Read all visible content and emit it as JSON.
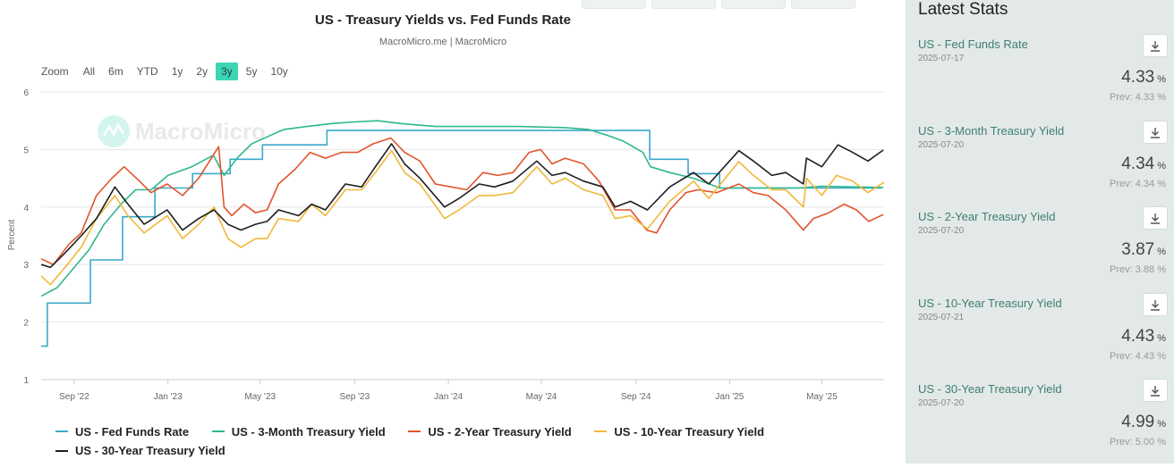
{
  "chart": {
    "title": "US - Treasury Yields vs. Fed Funds Rate",
    "subtitle": "MacroMicro.me | MacroMicro",
    "watermark": "MacroMicro",
    "zoom_label": "Zoom",
    "zoom_options": [
      "All",
      "6m",
      "YTD",
      "1y",
      "2y",
      "3y",
      "5y",
      "10y"
    ],
    "zoom_active": "3y"
  },
  "chart_data": {
    "type": "line",
    "title": "US - Treasury Yields vs. Fed Funds Rate",
    "subtitle": "MacroMicro.me | MacroMicro",
    "ylabel": "Percent",
    "ylim": [
      1,
      6
    ],
    "yticks": [
      1,
      2,
      3,
      4,
      5,
      6
    ],
    "xlim": [
      "2022-07-20",
      "2025-07-21"
    ],
    "xticks": [
      {
        "date": "2022-09-01",
        "label": "Sep '22"
      },
      {
        "date": "2023-01-01",
        "label": "Jan '23"
      },
      {
        "date": "2023-05-01",
        "label": "May '23"
      },
      {
        "date": "2023-09-01",
        "label": "Sep '23"
      },
      {
        "date": "2024-01-01",
        "label": "Jan '24"
      },
      {
        "date": "2024-05-01",
        "label": "May '24"
      },
      {
        "date": "2024-09-01",
        "label": "Sep '24"
      },
      {
        "date": "2025-01-01",
        "label": "Jan '25"
      },
      {
        "date": "2025-05-01",
        "label": "May '25"
      }
    ],
    "grid": true,
    "legend_position": "bottom",
    "series": [
      {
        "name": "US - Fed Funds Rate",
        "color": "#3aa9c9",
        "step": true,
        "points": [
          [
            "2022-07-20",
            1.58
          ],
          [
            "2022-07-28",
            2.33
          ],
          [
            "2022-09-22",
            3.08
          ],
          [
            "2022-11-03",
            3.83
          ],
          [
            "2022-12-15",
            4.33
          ],
          [
            "2023-02-02",
            4.58
          ],
          [
            "2023-03-23",
            4.83
          ],
          [
            "2023-05-04",
            5.08
          ],
          [
            "2023-07-27",
            5.33
          ],
          [
            "2024-09-19",
            4.83
          ],
          [
            "2024-11-08",
            4.58
          ],
          [
            "2024-12-19",
            4.33
          ],
          [
            "2025-07-17",
            4.33
          ]
        ]
      },
      {
        "name": "US - 3-Month Treasury Yield",
        "color": "#2eb88a",
        "points": [
          [
            "2022-07-20",
            2.45
          ],
          [
            "2022-08-10",
            2.6
          ],
          [
            "2022-09-01",
            2.95
          ],
          [
            "2022-09-20",
            3.25
          ],
          [
            "2022-10-10",
            3.7
          ],
          [
            "2022-11-01",
            4.05
          ],
          [
            "2022-11-20",
            4.3
          ],
          [
            "2022-12-10",
            4.3
          ],
          [
            "2023-01-01",
            4.55
          ],
          [
            "2023-02-01",
            4.7
          ],
          [
            "2023-03-01",
            4.9
          ],
          [
            "2023-03-15",
            4.55
          ],
          [
            "2023-04-01",
            4.85
          ],
          [
            "2023-04-20",
            5.1
          ],
          [
            "2023-05-15",
            5.25
          ],
          [
            "2023-06-01",
            5.35
          ],
          [
            "2023-07-01",
            5.4
          ],
          [
            "2023-08-01",
            5.45
          ],
          [
            "2023-09-01",
            5.48
          ],
          [
            "2023-10-01",
            5.5
          ],
          [
            "2023-11-01",
            5.45
          ],
          [
            "2023-12-15",
            5.4
          ],
          [
            "2024-02-01",
            5.4
          ],
          [
            "2024-04-01",
            5.4
          ],
          [
            "2024-06-01",
            5.38
          ],
          [
            "2024-07-01",
            5.35
          ],
          [
            "2024-07-25",
            5.25
          ],
          [
            "2024-08-15",
            5.15
          ],
          [
            "2024-09-10",
            4.95
          ],
          [
            "2024-09-20",
            4.7
          ],
          [
            "2024-10-15",
            4.6
          ],
          [
            "2024-11-15",
            4.5
          ],
          [
            "2024-12-20",
            4.33
          ],
          [
            "2025-02-01",
            4.33
          ],
          [
            "2025-04-01",
            4.33
          ],
          [
            "2025-05-01",
            4.36
          ],
          [
            "2025-07-20",
            4.34
          ]
        ]
      },
      {
        "name": "US - 2-Year Treasury Yield",
        "color": "#e2542c",
        "points": [
          [
            "2022-07-20",
            3.1
          ],
          [
            "2022-08-05",
            3.0
          ],
          [
            "2022-08-25",
            3.35
          ],
          [
            "2022-09-10",
            3.55
          ],
          [
            "2022-09-30",
            4.2
          ],
          [
            "2022-10-20",
            4.5
          ],
          [
            "2022-11-05",
            4.7
          ],
          [
            "2022-11-25",
            4.45
          ],
          [
            "2022-12-10",
            4.25
          ],
          [
            "2022-12-31",
            4.4
          ],
          [
            "2023-01-20",
            4.2
          ],
          [
            "2023-02-10",
            4.5
          ],
          [
            "2023-03-08",
            5.05
          ],
          [
            "2023-03-15",
            4.0
          ],
          [
            "2023-03-25",
            3.85
          ],
          [
            "2023-04-10",
            4.05
          ],
          [
            "2023-04-25",
            3.9
          ],
          [
            "2023-05-10",
            3.95
          ],
          [
            "2023-05-25",
            4.4
          ],
          [
            "2023-06-15",
            4.65
          ],
          [
            "2023-07-05",
            4.95
          ],
          [
            "2023-07-25",
            4.85
          ],
          [
            "2023-08-15",
            4.95
          ],
          [
            "2023-09-05",
            4.95
          ],
          [
            "2023-09-25",
            5.1
          ],
          [
            "2023-10-18",
            5.2
          ],
          [
            "2023-11-05",
            4.95
          ],
          [
            "2023-11-25",
            4.8
          ],
          [
            "2023-12-15",
            4.4
          ],
          [
            "2024-01-05",
            4.35
          ],
          [
            "2024-01-25",
            4.3
          ],
          [
            "2024-02-15",
            4.6
          ],
          [
            "2024-03-05",
            4.55
          ],
          [
            "2024-03-25",
            4.6
          ],
          [
            "2024-04-15",
            4.95
          ],
          [
            "2024-04-30",
            5.0
          ],
          [
            "2024-05-15",
            4.75
          ],
          [
            "2024-06-01",
            4.85
          ],
          [
            "2024-06-25",
            4.75
          ],
          [
            "2024-07-15",
            4.45
          ],
          [
            "2024-08-05",
            3.95
          ],
          [
            "2024-08-25",
            3.95
          ],
          [
            "2024-09-15",
            3.6
          ],
          [
            "2024-09-28",
            3.55
          ],
          [
            "2024-10-15",
            3.95
          ],
          [
            "2024-11-05",
            4.25
          ],
          [
            "2024-11-20",
            4.3
          ],
          [
            "2024-12-15",
            4.25
          ],
          [
            "2025-01-13",
            4.4
          ],
          [
            "2025-02-01",
            4.25
          ],
          [
            "2025-02-20",
            4.2
          ],
          [
            "2025-03-15",
            3.95
          ],
          [
            "2025-04-07",
            3.6
          ],
          [
            "2025-04-20",
            3.8
          ],
          [
            "2025-05-10",
            3.9
          ],
          [
            "2025-05-30",
            4.05
          ],
          [
            "2025-06-15",
            3.95
          ],
          [
            "2025-07-01",
            3.75
          ],
          [
            "2025-07-20",
            3.87
          ]
        ]
      },
      {
        "name": "US - 10-Year Treasury Yield",
        "color": "#f0b83a",
        "points": [
          [
            "2022-07-20",
            2.8
          ],
          [
            "2022-08-01",
            2.65
          ],
          [
            "2022-08-20",
            2.95
          ],
          [
            "2022-09-10",
            3.3
          ],
          [
            "2022-09-30",
            3.8
          ],
          [
            "2022-10-24",
            4.2
          ],
          [
            "2022-11-10",
            3.85
          ],
          [
            "2022-12-01",
            3.55
          ],
          [
            "2022-12-31",
            3.85
          ],
          [
            "2023-01-20",
            3.45
          ],
          [
            "2023-02-10",
            3.7
          ],
          [
            "2023-03-02",
            4.0
          ],
          [
            "2023-03-20",
            3.45
          ],
          [
            "2023-04-06",
            3.3
          ],
          [
            "2023-04-25",
            3.45
          ],
          [
            "2023-05-10",
            3.45
          ],
          [
            "2023-05-25",
            3.8
          ],
          [
            "2023-06-20",
            3.75
          ],
          [
            "2023-07-07",
            4.05
          ],
          [
            "2023-07-25",
            3.85
          ],
          [
            "2023-08-20",
            4.3
          ],
          [
            "2023-09-10",
            4.3
          ],
          [
            "2023-09-28",
            4.6
          ],
          [
            "2023-10-19",
            4.98
          ],
          [
            "2023-11-05",
            4.6
          ],
          [
            "2023-11-25",
            4.4
          ],
          [
            "2023-12-27",
            3.8
          ],
          [
            "2024-01-15",
            3.95
          ],
          [
            "2024-02-10",
            4.2
          ],
          [
            "2024-03-01",
            4.2
          ],
          [
            "2024-03-25",
            4.25
          ],
          [
            "2024-04-25",
            4.7
          ],
          [
            "2024-05-15",
            4.4
          ],
          [
            "2024-06-01",
            4.5
          ],
          [
            "2024-06-25",
            4.3
          ],
          [
            "2024-07-20",
            4.2
          ],
          [
            "2024-08-05",
            3.8
          ],
          [
            "2024-08-25",
            3.85
          ],
          [
            "2024-09-16",
            3.62
          ],
          [
            "2024-10-15",
            4.1
          ],
          [
            "2024-11-15",
            4.45
          ],
          [
            "2024-12-05",
            4.15
          ],
          [
            "2025-01-13",
            4.79
          ],
          [
            "2025-02-01",
            4.55
          ],
          [
            "2025-02-25",
            4.3
          ],
          [
            "2025-03-15",
            4.3
          ],
          [
            "2025-04-07",
            4.0
          ],
          [
            "2025-04-11",
            4.5
          ],
          [
            "2025-05-01",
            4.2
          ],
          [
            "2025-05-20",
            4.55
          ],
          [
            "2025-06-10",
            4.45
          ],
          [
            "2025-06-30",
            4.25
          ],
          [
            "2025-07-21",
            4.43
          ]
        ]
      },
      {
        "name": "US - 30-Year Treasury Yield",
        "color": "#1e1e1e",
        "points": [
          [
            "2022-07-20",
            3.0
          ],
          [
            "2022-08-01",
            2.95
          ],
          [
            "2022-08-20",
            3.2
          ],
          [
            "2022-09-10",
            3.5
          ],
          [
            "2022-09-30",
            3.8
          ],
          [
            "2022-10-24",
            4.35
          ],
          [
            "2022-11-10",
            4.05
          ],
          [
            "2022-12-01",
            3.7
          ],
          [
            "2022-12-31",
            3.95
          ],
          [
            "2023-01-20",
            3.6
          ],
          [
            "2023-02-10",
            3.8
          ],
          [
            "2023-03-02",
            3.95
          ],
          [
            "2023-03-20",
            3.7
          ],
          [
            "2023-04-06",
            3.6
          ],
          [
            "2023-04-25",
            3.7
          ],
          [
            "2023-05-10",
            3.75
          ],
          [
            "2023-05-25",
            3.95
          ],
          [
            "2023-06-20",
            3.85
          ],
          [
            "2023-07-07",
            4.05
          ],
          [
            "2023-07-25",
            3.95
          ],
          [
            "2023-08-20",
            4.4
          ],
          [
            "2023-09-10",
            4.35
          ],
          [
            "2023-09-28",
            4.7
          ],
          [
            "2023-10-19",
            5.1
          ],
          [
            "2023-11-05",
            4.75
          ],
          [
            "2023-11-25",
            4.5
          ],
          [
            "2023-12-27",
            4.0
          ],
          [
            "2024-01-15",
            4.15
          ],
          [
            "2024-02-10",
            4.4
          ],
          [
            "2024-03-01",
            4.35
          ],
          [
            "2024-03-25",
            4.45
          ],
          [
            "2024-04-25",
            4.8
          ],
          [
            "2024-05-15",
            4.55
          ],
          [
            "2024-06-01",
            4.6
          ],
          [
            "2024-06-25",
            4.45
          ],
          [
            "2024-07-20",
            4.35
          ],
          [
            "2024-08-05",
            4.0
          ],
          [
            "2024-08-25",
            4.1
          ],
          [
            "2024-09-16",
            3.95
          ],
          [
            "2024-10-15",
            4.35
          ],
          [
            "2024-11-15",
            4.6
          ],
          [
            "2024-12-05",
            4.4
          ],
          [
            "2025-01-13",
            4.98
          ],
          [
            "2025-02-01",
            4.8
          ],
          [
            "2025-02-25",
            4.55
          ],
          [
            "2025-03-15",
            4.6
          ],
          [
            "2025-04-07",
            4.4
          ],
          [
            "2025-04-11",
            4.85
          ],
          [
            "2025-05-01",
            4.7
          ],
          [
            "2025-05-22",
            5.08
          ],
          [
            "2025-06-10",
            4.95
          ],
          [
            "2025-06-30",
            4.8
          ],
          [
            "2025-07-20",
            4.99
          ]
        ]
      }
    ]
  },
  "stats": {
    "title": "Latest Stats",
    "items": [
      {
        "name": "US - Fed Funds Rate",
        "date": "2025-07-17",
        "value": "4.33",
        "unit": "%",
        "prev": "Prev: 4.33 %"
      },
      {
        "name": "US - 3-Month Treasury Yield",
        "date": "2025-07-20",
        "value": "4.34",
        "unit": "%",
        "prev": "Prev: 4.34 %"
      },
      {
        "name": "US - 2-Year Treasury Yield",
        "date": "2025-07-20",
        "value": "3.87",
        "unit": "%",
        "prev": "Prev: 3.88 %"
      },
      {
        "name": "US - 10-Year Treasury Yield",
        "date": "2025-07-21",
        "value": "4.43",
        "unit": "%",
        "prev": "Prev: 4.43 %"
      },
      {
        "name": "US - 30-Year Treasury Yield",
        "date": "2025-07-20",
        "value": "4.99",
        "unit": "%",
        "prev": "Prev: 5.00 %"
      }
    ]
  }
}
